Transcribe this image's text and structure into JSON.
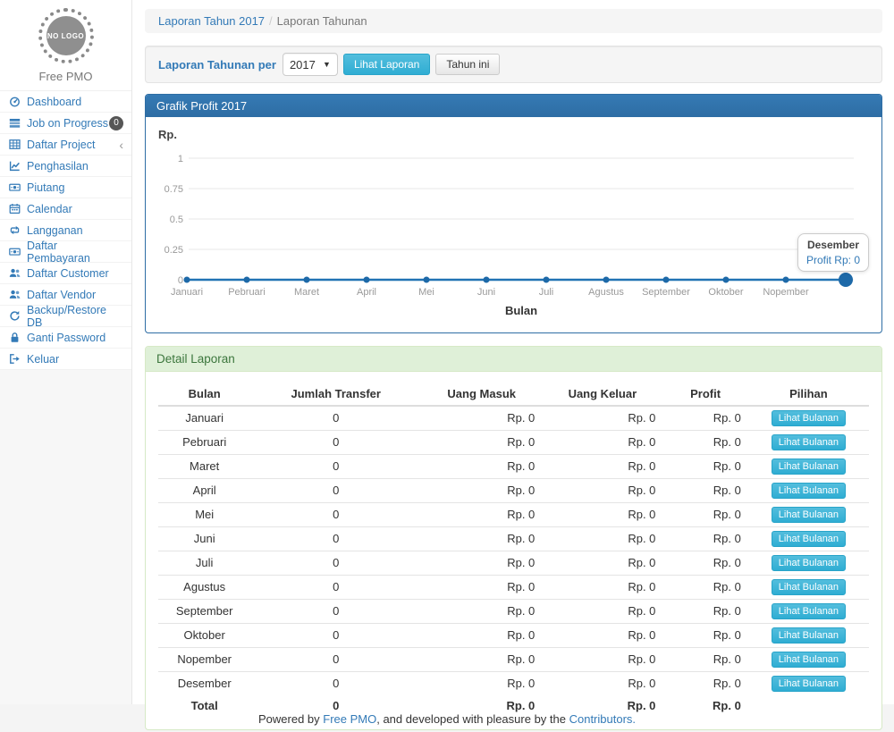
{
  "sidebar": {
    "logo_text": "NO LOGO",
    "brand": "Free PMO",
    "items": [
      {
        "label": "Dashboard",
        "icon": "dashboard-icon"
      },
      {
        "label": "Job on Progress",
        "icon": "tasks-icon",
        "badge": "0"
      },
      {
        "label": "Daftar Project",
        "icon": "table-icon",
        "chevron": "‹"
      },
      {
        "label": "Penghasilan",
        "icon": "line-chart-icon"
      },
      {
        "label": "Piutang",
        "icon": "money-icon"
      },
      {
        "label": "Calendar",
        "icon": "calendar-icon"
      },
      {
        "label": "Langganan",
        "icon": "retweet-icon"
      },
      {
        "label": "Daftar Pembayaran",
        "icon": "money-icon"
      },
      {
        "label": "Daftar Customer",
        "icon": "users-icon"
      },
      {
        "label": "Daftar Vendor",
        "icon": "users-icon"
      },
      {
        "label": "Backup/Restore DB",
        "icon": "refresh-icon"
      },
      {
        "label": "Ganti Password",
        "icon": "lock-icon"
      },
      {
        "label": "Keluar",
        "icon": "sign-out-icon"
      }
    ]
  },
  "breadcrumb": {
    "link": "Laporan Tahun 2017",
    "separator": "/",
    "current": "Laporan Tahunan"
  },
  "filter": {
    "label": "Laporan Tahunan per",
    "year": "2017",
    "submit": "Lihat Laporan",
    "this_year": "Tahun ini"
  },
  "chart_panel": {
    "title": "Grafik Profit 2017"
  },
  "chart_data": {
    "type": "line",
    "title": "Grafik Profit 2017",
    "xlabel": "Bulan",
    "ylabel": "Rp.",
    "categories": [
      "Januari",
      "Pebruari",
      "Maret",
      "April",
      "Mei",
      "Juni",
      "Juli",
      "Agustus",
      "September",
      "Oktober",
      "Nopember",
      "Desember"
    ],
    "values": [
      0,
      0,
      0,
      0,
      0,
      0,
      0,
      0,
      0,
      0,
      0,
      0
    ],
    "yticks": [
      0,
      0.25,
      0.5,
      0.75,
      1
    ],
    "ylim": [
      0,
      1
    ],
    "grid": true,
    "legend": "none",
    "hide_last_x_label": true,
    "highlight_last_point": true,
    "tooltip": {
      "title": "Desember",
      "value": "Profit Rp: 0"
    }
  },
  "detail_panel": {
    "title": "Detail Laporan",
    "table": {
      "headers": [
        "Bulan",
        "Jumlah Transfer",
        "Uang Masuk",
        "Uang Keluar",
        "Profit",
        "Pilihan"
      ],
      "rows": [
        [
          "Januari",
          "0",
          "Rp. 0",
          "Rp. 0",
          "Rp. 0",
          "Lihat Bulanan"
        ],
        [
          "Pebruari",
          "0",
          "Rp. 0",
          "Rp. 0",
          "Rp. 0",
          "Lihat Bulanan"
        ],
        [
          "Maret",
          "0",
          "Rp. 0",
          "Rp. 0",
          "Rp. 0",
          "Lihat Bulanan"
        ],
        [
          "April",
          "0",
          "Rp. 0",
          "Rp. 0",
          "Rp. 0",
          "Lihat Bulanan"
        ],
        [
          "Mei",
          "0",
          "Rp. 0",
          "Rp. 0",
          "Rp. 0",
          "Lihat Bulanan"
        ],
        [
          "Juni",
          "0",
          "Rp. 0",
          "Rp. 0",
          "Rp. 0",
          "Lihat Bulanan"
        ],
        [
          "Juli",
          "0",
          "Rp. 0",
          "Rp. 0",
          "Rp. 0",
          "Lihat Bulanan"
        ],
        [
          "Agustus",
          "0",
          "Rp. 0",
          "Rp. 0",
          "Rp. 0",
          "Lihat Bulanan"
        ],
        [
          "September",
          "0",
          "Rp. 0",
          "Rp. 0",
          "Rp. 0",
          "Lihat Bulanan"
        ],
        [
          "Oktober",
          "0",
          "Rp. 0",
          "Rp. 0",
          "Rp. 0",
          "Lihat Bulanan"
        ],
        [
          "Nopember",
          "0",
          "Rp. 0",
          "Rp. 0",
          "Rp. 0",
          "Lihat Bulanan"
        ],
        [
          "Desember",
          "0",
          "Rp. 0",
          "Rp. 0",
          "Rp. 0",
          "Lihat Bulanan"
        ]
      ],
      "total": [
        "Total",
        "0",
        "Rp. 0",
        "Rp. 0",
        "Rp. 0"
      ]
    }
  },
  "footer": {
    "prefix": "Powered by ",
    "link1": "Free PMO",
    "middle": ", and developed with pleasure by the ",
    "link2": "Contributors."
  },
  "colors": {
    "link_blue": "#337ab7",
    "panel_primary_header": "#2e6da4",
    "panel_success_bg": "#dff0d8",
    "panel_success_text": "#3c763d",
    "info_button": "#31b0d5",
    "chart_line": "#2173b4",
    "chart_grid": "#e7e7e7",
    "tick_text": "#999999",
    "badge_bg": "#565656"
  }
}
